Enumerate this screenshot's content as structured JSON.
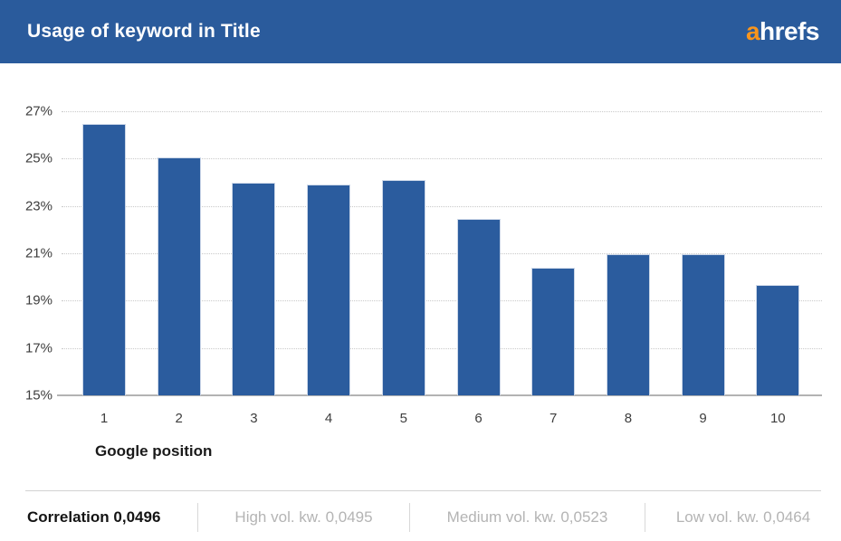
{
  "header": {
    "title": "Usage of keyword in Title",
    "logo_prefix": "a",
    "logo_rest": "hrefs"
  },
  "colors": {
    "header_bg": "#2a5b9c",
    "bar_fill": "#2b5c9e",
    "bar_border": "#ccd7e8",
    "logo_orange": "#f8951d",
    "logo_white": "#ffffff",
    "gridline": "#c9c9c9",
    "axis_line": "#b3b3b3",
    "tick_text": "#3e3e3e",
    "correlation_text": "#141414",
    "muted_text": "#b4b4b4"
  },
  "chart_data": {
    "type": "bar",
    "title": "Usage of keyword in Title",
    "categories": [
      "1",
      "2",
      "3",
      "4",
      "5",
      "6",
      "7",
      "8",
      "9",
      "10"
    ],
    "values": [
      26.45,
      25.05,
      24.0,
      23.9,
      24.1,
      22.45,
      20.4,
      20.95,
      20.95,
      19.65
    ],
    "xlabel": "Google position",
    "ylabel": "",
    "ylim": [
      15,
      27
    ],
    "yticks": [
      15,
      17,
      19,
      21,
      23,
      25,
      27
    ],
    "ytick_labels": [
      "15%",
      "17%",
      "19%",
      "21%",
      "23%",
      "25%",
      "27%"
    ],
    "grid": "horizontal-dotted",
    "legend": "none"
  },
  "footer": {
    "items": [
      {
        "label": "Correlation 0,0496",
        "emphasis": true
      },
      {
        "label": "High vol. kw. 0,0495",
        "emphasis": false
      },
      {
        "label": "Medium vol. kw. 0,0523",
        "emphasis": false
      },
      {
        "label": "Low vol. kw. 0,0464",
        "emphasis": false
      }
    ]
  }
}
